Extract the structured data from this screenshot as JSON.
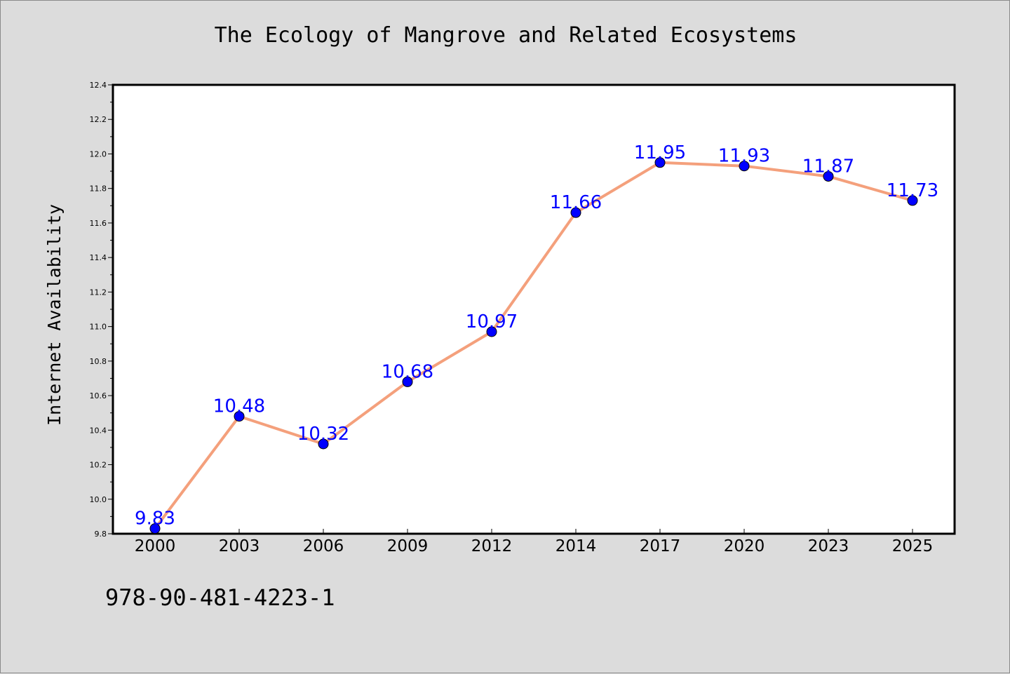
{
  "chart_data": {
    "type": "line",
    "title": "The Ecology of Mangrove and Related Ecosystems",
    "xlabel": "",
    "ylabel": "Internet Availability",
    "categories": [
      "2000",
      "2003",
      "2006",
      "2009",
      "2012",
      "2014",
      "2017",
      "2020",
      "2023",
      "2025"
    ],
    "series": [
      {
        "values": [
          9.83,
          10.48,
          10.32,
          10.68,
          10.97,
          11.66,
          11.95,
          11.93,
          11.87,
          11.73
        ],
        "labels": [
          "9.83",
          "10.48",
          "10.32",
          "10.68",
          "10.97",
          "11.66",
          "11.95",
          "11.93",
          "11.87",
          "11.73"
        ],
        "line_color": "#f4a07c",
        "marker_color": "#0000ff",
        "label_color": "#0000ff"
      }
    ],
    "ylim": [
      9.8,
      12.4
    ],
    "yticks": [
      "9.8",
      "10.0",
      "10.2",
      "10.4",
      "10.6",
      "10.8",
      "11.0",
      "11.2",
      "11.4",
      "11.6",
      "11.8",
      "12.0",
      "12.2",
      "12.4"
    ],
    "grid": false,
    "legend": "none"
  },
  "footer": {
    "isbn": "978-90-481-4223-1"
  },
  "colors": {
    "background": "#dcdcdc",
    "plot_background": "#ffffff"
  }
}
